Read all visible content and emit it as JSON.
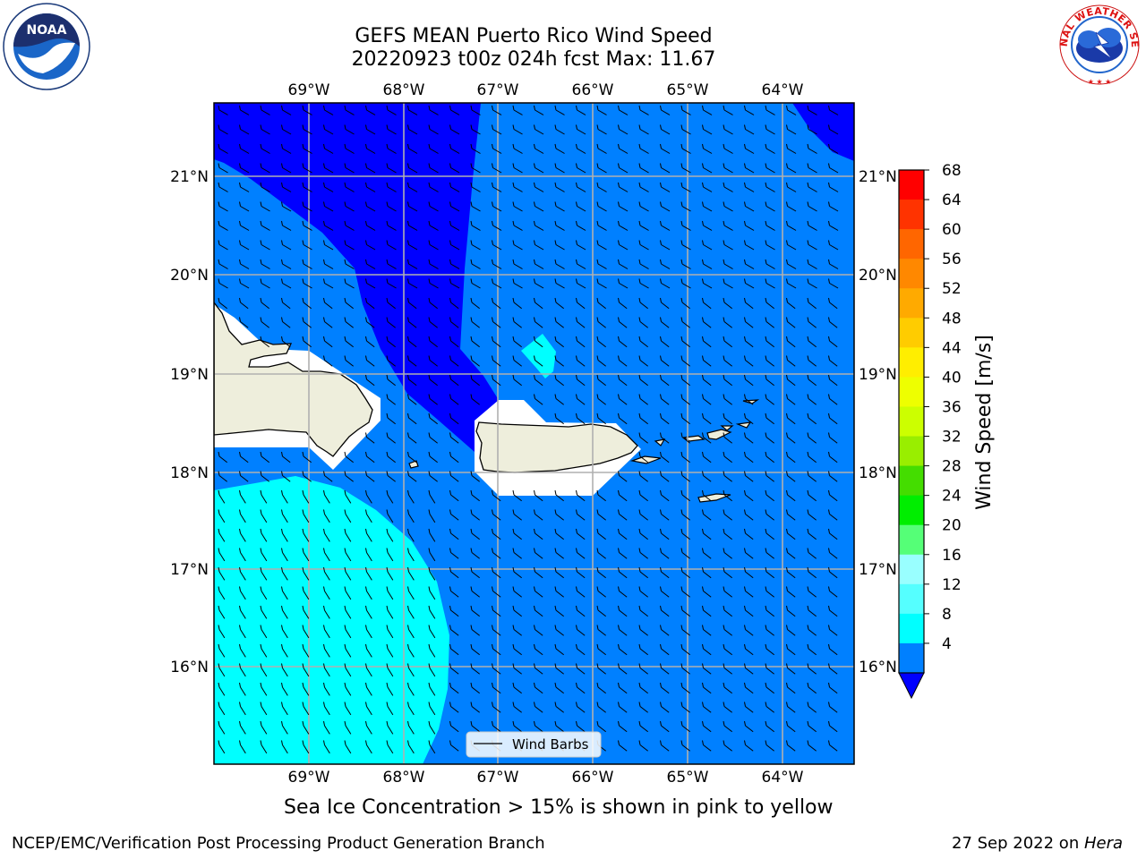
{
  "title": {
    "line1": "GEFS MEAN Puerto Rico Wind Speed",
    "line2": "20220923 t00z 024h fcst   Max: 11.67"
  },
  "map": {
    "lon_ticks": [
      "69°W",
      "68°W",
      "67°W",
      "66°W",
      "65°W",
      "64°W"
    ],
    "lat_ticks": [
      "21°N",
      "20°N",
      "19°N",
      "18°N",
      "17°N",
      "16°N"
    ],
    "legend_label": "Wind Barbs",
    "colors": {
      "below_4": "#0000ff",
      "band_4_8": "#0080ff",
      "band_8_12": "#00ffff",
      "land": "#eeeedc",
      "masked": "#ffffff",
      "grid": "#b0b0b0"
    }
  },
  "colorbar": {
    "label": "Wind Speed [m/s]",
    "ticks": [
      "68",
      "64",
      "60",
      "56",
      "52",
      "48",
      "44",
      "40",
      "36",
      "32",
      "28",
      "24",
      "20",
      "16",
      "12",
      "8",
      "4"
    ],
    "band_colors": [
      "#ff0000",
      "#ff3300",
      "#ff6600",
      "#ff8800",
      "#ffaa00",
      "#ffcc00",
      "#ffee00",
      "#eeff00",
      "#ccff00",
      "#99ee00",
      "#44dd00",
      "#00ee00",
      "#55ff77",
      "#99ffff",
      "#55ffff",
      "#00ffff",
      "#0080ff"
    ],
    "extend_color": "#0000ff"
  },
  "caption": "Sea Ice Concentration > 15% is shown in pink to yellow",
  "footer": {
    "left": "NCEP/EMC/Verification Post Processing Product Generation Branch",
    "right_prefix": "27 Sep 2022 on ",
    "right_host": "Hera"
  },
  "logos": {
    "left": {
      "icon": "noaa-logo",
      "text": "NOAA"
    },
    "right": {
      "icon": "nws-logo",
      "text": "NATIONAL WEATHER SERVICE"
    }
  }
}
